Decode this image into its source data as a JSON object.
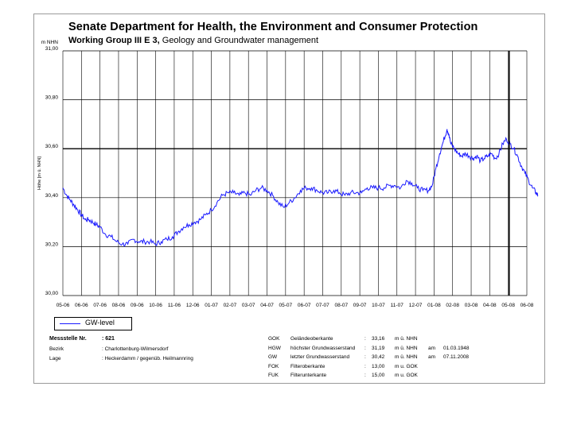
{
  "header": {
    "title": "Senate Department for Health, the Environment and Consumer Protection",
    "subtitle_bold": "Working Group III E 3,",
    "subtitle_rest": " Geology and Groundwater management"
  },
  "legend": {
    "label": "GW-level"
  },
  "colors": {
    "series": "#1a1aff",
    "grid": "#000000"
  },
  "chart_data": {
    "type": "line",
    "title": "Senate Department for Health, the Environment and Consumer Protection",
    "ylabel": "Höhe [m ü. NHN]",
    "yunit": "m NHN",
    "ylim": [
      30.0,
      31.0
    ],
    "yticks": [
      {
        "v": 31.0,
        "label": "31,00"
      },
      {
        "v": 30.8,
        "label": "30,80"
      },
      {
        "v": 30.6,
        "label": "30,60"
      },
      {
        "v": 30.4,
        "label": "30,40"
      },
      {
        "v": 30.2,
        "label": "30,20"
      },
      {
        "v": 30.0,
        "label": "30,00"
      }
    ],
    "xticks": [
      "05-06",
      "06-06",
      "07-06",
      "08-06",
      "09-06",
      "10-06",
      "11-06",
      "12-06",
      "01-07",
      "02-07",
      "03-07",
      "04-07",
      "05-07",
      "06-07",
      "07-07",
      "08-07",
      "09-07",
      "10-07",
      "11-07",
      "12-07",
      "01-08",
      "02-08",
      "03-08",
      "04-08",
      "05-08",
      "06-08"
    ],
    "series": [
      {
        "name": "GW-level",
        "points": [
          [
            0,
            30.44
          ],
          [
            0.2,
            30.41
          ],
          [
            0.4,
            30.39
          ],
          [
            0.6,
            30.37
          ],
          [
            0.8,
            30.35
          ],
          [
            1.0,
            30.33
          ],
          [
            1.2,
            30.31
          ],
          [
            1.4,
            30.31
          ],
          [
            1.6,
            30.3
          ],
          [
            1.8,
            30.29
          ],
          [
            2.0,
            30.28
          ],
          [
            2.3,
            30.25
          ],
          [
            2.6,
            30.24
          ],
          [
            2.9,
            30.22
          ],
          [
            3.2,
            30.21
          ],
          [
            3.5,
            30.21
          ],
          [
            3.8,
            30.23
          ],
          [
            4.1,
            30.22
          ],
          [
            4.4,
            30.22
          ],
          [
            4.7,
            30.22
          ],
          [
            5.0,
            30.21
          ],
          [
            5.3,
            30.22
          ],
          [
            5.6,
            30.23
          ],
          [
            5.9,
            30.24
          ],
          [
            6.2,
            30.26
          ],
          [
            6.5,
            30.28
          ],
          [
            6.8,
            30.29
          ],
          [
            7.1,
            30.3
          ],
          [
            7.4,
            30.31
          ],
          [
            7.7,
            30.33
          ],
          [
            8.0,
            30.35
          ],
          [
            8.3,
            30.38
          ],
          [
            8.6,
            30.41
          ],
          [
            8.9,
            30.42
          ],
          [
            9.2,
            30.42
          ],
          [
            9.5,
            30.41
          ],
          [
            9.8,
            30.42
          ],
          [
            10.1,
            30.41
          ],
          [
            10.4,
            30.43
          ],
          [
            10.7,
            30.44
          ],
          [
            11.0,
            30.43
          ],
          [
            11.3,
            30.41
          ],
          [
            11.6,
            30.38
          ],
          [
            11.9,
            30.36
          ],
          [
            12.2,
            30.38
          ],
          [
            12.5,
            30.4
          ],
          [
            12.8,
            30.43
          ],
          [
            13.1,
            30.44
          ],
          [
            13.4,
            30.44
          ],
          [
            13.7,
            30.43
          ],
          [
            14.0,
            30.42
          ],
          [
            14.3,
            30.42
          ],
          [
            14.6,
            30.43
          ],
          [
            14.9,
            30.42
          ],
          [
            15.2,
            30.41
          ],
          [
            15.5,
            30.42
          ],
          [
            15.8,
            30.42
          ],
          [
            16.1,
            30.42
          ],
          [
            16.4,
            30.44
          ],
          [
            16.7,
            30.44
          ],
          [
            17.0,
            30.44
          ],
          [
            17.3,
            30.44
          ],
          [
            17.6,
            30.45
          ],
          [
            17.9,
            30.45
          ],
          [
            18.2,
            30.44
          ],
          [
            18.5,
            30.47
          ],
          [
            18.8,
            30.46
          ],
          [
            19.1,
            30.44
          ],
          [
            19.4,
            30.43
          ],
          [
            19.7,
            30.43
          ],
          [
            19.9,
            30.45
          ],
          [
            20.1,
            30.52
          ],
          [
            20.3,
            30.58
          ],
          [
            20.5,
            30.63
          ],
          [
            20.7,
            30.68
          ],
          [
            20.8,
            30.66
          ],
          [
            20.9,
            30.62
          ],
          [
            21.1,
            30.6
          ],
          [
            21.3,
            30.58
          ],
          [
            21.5,
            30.57
          ],
          [
            21.7,
            30.58
          ],
          [
            21.9,
            30.57
          ],
          [
            22.1,
            30.56
          ],
          [
            22.3,
            30.57
          ],
          [
            22.5,
            30.55
          ],
          [
            22.7,
            30.56
          ],
          [
            22.9,
            30.57
          ],
          [
            23.1,
            30.58
          ],
          [
            23.3,
            30.56
          ],
          [
            23.5,
            30.58
          ],
          [
            23.7,
            30.62
          ],
          [
            23.9,
            30.64
          ],
          [
            24.1,
            30.62
          ],
          [
            24.3,
            30.6
          ],
          [
            24.5,
            30.57
          ],
          [
            24.7,
            30.53
          ],
          [
            24.9,
            30.5
          ],
          [
            25.1,
            30.47
          ],
          [
            25.3,
            30.44
          ],
          [
            25.5,
            30.42
          ],
          [
            25.6,
            30.41
          ]
        ]
      }
    ]
  },
  "info": {
    "station_label": "Messstelle Nr.",
    "station_value": ": 621",
    "district_label": "Bezirk",
    "district_value": ": Charlottenburg-Wilmersdorf",
    "location_label": "Lage",
    "location_value": ": Heckerdamm / gegenüb. Heilmannring",
    "rows": [
      {
        "code": "GOK",
        "desc": "Geländeoberkante",
        "sep": ":",
        "value": "33,16",
        "unit": "m ü. NHN",
        "date_label": "",
        "date": ""
      },
      {
        "code": "HGW",
        "desc": "höchster Grundwasserstand",
        "sep": ":",
        "value": "31,19",
        "unit": "m ü. NHN",
        "date_label": "am",
        "date": "01.03.1948"
      },
      {
        "code": "GW",
        "desc": "letzter Grundwasserstand",
        "sep": ":",
        "value": "30,42",
        "unit": "m ü. NHN",
        "date_label": "am",
        "date": "07.11.2008"
      },
      {
        "code": "FOK",
        "desc": "Filteroberkante",
        "sep": ":",
        "value": "13,00",
        "unit": "m u. GOK",
        "date_label": "",
        "date": ""
      },
      {
        "code": "FUK",
        "desc": "Filterunterkante",
        "sep": ":",
        "value": "15,00",
        "unit": "m u. GOK",
        "date_label": "",
        "date": ""
      }
    ]
  }
}
